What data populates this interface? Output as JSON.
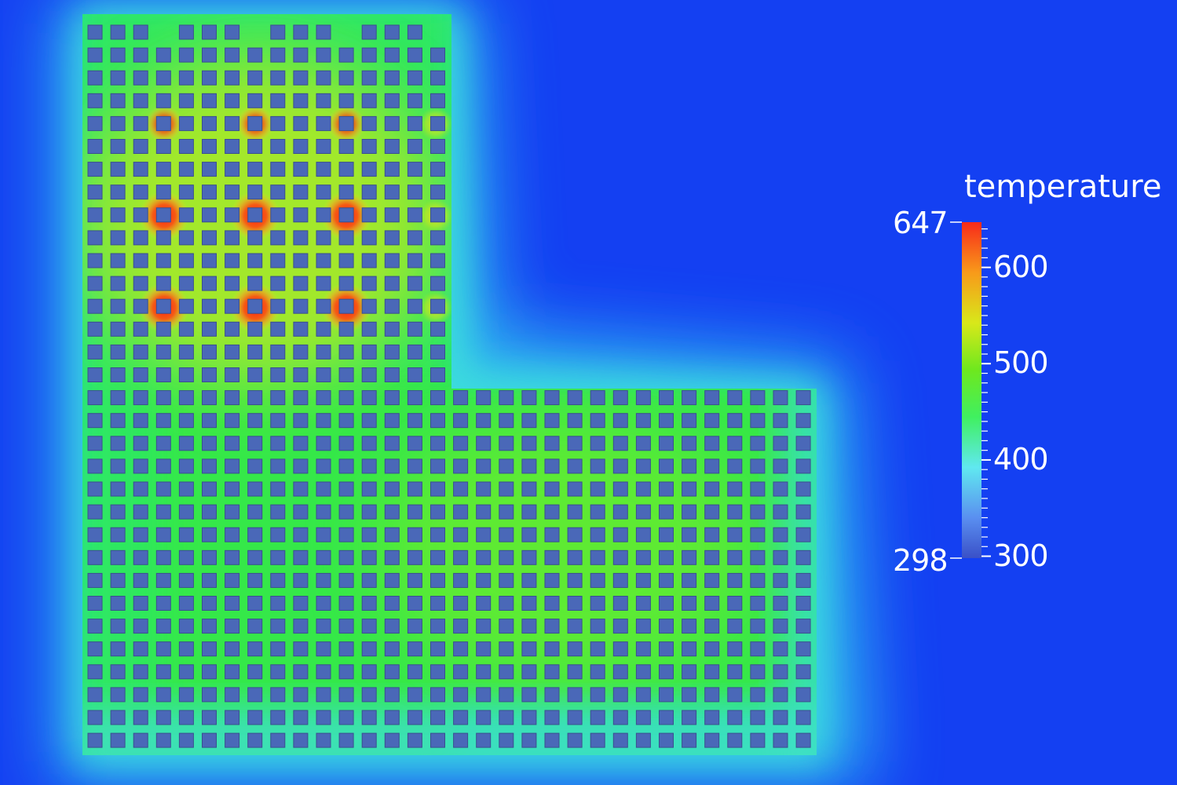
{
  "colorbar": {
    "title": "temperature",
    "min": 298,
    "max": 647,
    "min_label": "298",
    "max_label": "647",
    "ticks": [
      {
        "value": 600,
        "label": "600"
      },
      {
        "value": 500,
        "label": "500"
      },
      {
        "value": 400,
        "label": "400"
      },
      {
        "value": 300,
        "label": "300"
      }
    ],
    "colors": [
      "#3a50c8",
      "#5a8ff0",
      "#60e8f0",
      "#40f060",
      "#6ee81e",
      "#d8e81a",
      "#f89a1a",
      "#f82a1a"
    ]
  },
  "background_color": "#1440f2",
  "hot_spot_count": 9
}
